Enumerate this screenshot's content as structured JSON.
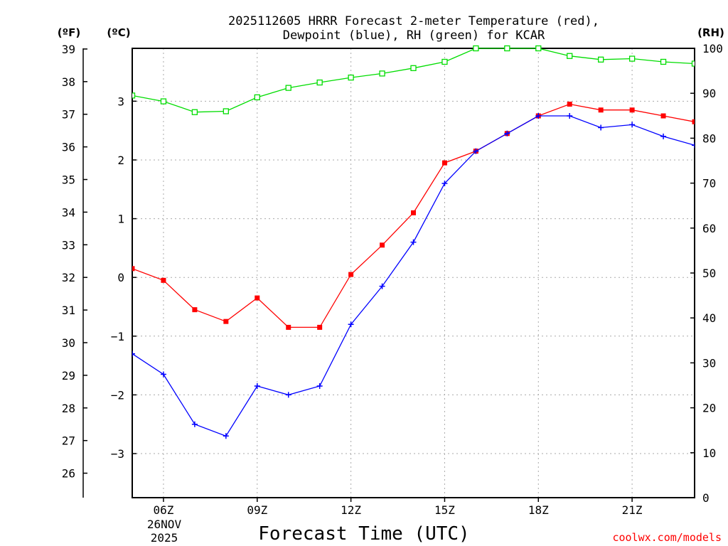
{
  "chart_data": {
    "type": "line",
    "title_line1": "2025112605 HRRR Forecast 2-meter Temperature (red),",
    "title_line2": "Dewpoint (blue), RH (green) for KCAR",
    "xlabel": "Forecast Time (UTC)",
    "credit": "coolwx.com/models",
    "date_line1": "26NOV",
    "date_line2": "2025",
    "units": {
      "fahrenheit": "(ºF)",
      "celsius": "(ºC)",
      "rh": "(RH)"
    },
    "x": [
      5,
      6,
      7,
      8,
      9,
      10,
      11,
      12,
      13,
      14,
      15,
      16,
      17,
      18,
      19,
      20,
      21,
      22,
      23
    ],
    "x_ticks": [
      {
        "hour": 6,
        "label": "06Z"
      },
      {
        "hour": 9,
        "label": "09Z"
      },
      {
        "hour": 12,
        "label": "12Z"
      },
      {
        "hour": 15,
        "label": "15Z"
      },
      {
        "hour": 18,
        "label": "18Z"
      },
      {
        "hour": 21,
        "label": "21Z"
      }
    ],
    "celsius_ticks": [
      3,
      2,
      1,
      0,
      -1,
      -2,
      -3
    ],
    "celsius_tick_labels": [
      "3",
      "2",
      "1",
      "0",
      "−1",
      "−2",
      "−3"
    ],
    "fahrenheit_ticks": [
      39,
      38,
      37,
      36,
      35,
      34,
      33,
      32,
      31,
      30,
      29,
      28,
      27,
      26
    ],
    "rh_ticks": [
      100,
      90,
      80,
      70,
      60,
      50,
      40,
      30,
      20,
      10,
      0
    ],
    "ylim_celsius": [
      -3.75,
      3.9
    ],
    "ylim_rh": [
      0,
      100
    ],
    "series": [
      {
        "name": "Temperature",
        "axis": "celsius",
        "color": "#ff0000",
        "marker": "filled-square",
        "values": [
          0.15,
          -0.05,
          -0.55,
          -0.75,
          -0.35,
          -0.85,
          -0.85,
          0.05,
          0.55,
          1.1,
          1.95,
          2.15,
          2.45,
          2.75,
          2.95,
          2.85,
          2.85,
          2.75,
          2.65
        ]
      },
      {
        "name": "Dewpoint",
        "axis": "celsius",
        "color": "#0000ff",
        "marker": "plus",
        "values": [
          -1.3,
          -1.65,
          -2.5,
          -2.7,
          -1.85,
          -2.0,
          -1.85,
          -0.8,
          -0.15,
          0.6,
          1.6,
          2.15,
          2.45,
          2.75,
          2.75,
          2.55,
          2.6,
          2.4,
          2.25
        ]
      },
      {
        "name": "RH",
        "axis": "rh",
        "color": "#00dd00",
        "marker": "open-square",
        "values": [
          89.5,
          88.2,
          85.8,
          86.0,
          89.1,
          91.2,
          92.4,
          93.5,
          94.4,
          95.6,
          97.0,
          100,
          100,
          100,
          98.3,
          97.5,
          97.7,
          97.0,
          96.6
        ]
      }
    ]
  }
}
